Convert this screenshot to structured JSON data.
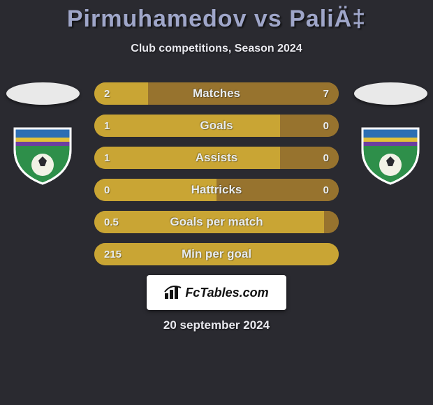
{
  "background_color": "#2a2a30",
  "title": {
    "text": "Pirmuhamedov vs PaliÄ‡",
    "fontsize": 34,
    "color": "#9fa6c9"
  },
  "subtitle": {
    "text": "Club competitions, Season 2024",
    "fontsize": 16,
    "color": "#e8e8ee"
  },
  "date": {
    "text": "20 september 2024",
    "fontsize": 17,
    "color": "#e8e8ee"
  },
  "brand": {
    "text": "FcTables.com"
  },
  "row_base_color": "#97732e",
  "row_fill_color": "#c9a534",
  "row_label_color": "#e8ecef",
  "row_value_color": "#e8ecef",
  "row_label_fontsize": 17,
  "row_value_fontsize": 15,
  "stats": [
    {
      "label": "Matches",
      "left_val": "2",
      "right_val": "7",
      "left_pct": 22,
      "right_pct": 78
    },
    {
      "label": "Goals",
      "left_val": "1",
      "right_val": "0",
      "left_pct": 76,
      "right_pct": 24
    },
    {
      "label": "Assists",
      "left_val": "1",
      "right_val": "0",
      "left_pct": 76,
      "right_pct": 24
    },
    {
      "label": "Hattricks",
      "left_val": "0",
      "right_val": "0",
      "left_pct": 50,
      "right_pct": 50
    },
    {
      "label": "Goals per match",
      "left_val": "0.5",
      "right_val": "",
      "left_pct": 94,
      "right_pct": 6
    },
    {
      "label": "Min per goal",
      "left_val": "215",
      "right_val": "",
      "left_pct": 100,
      "right_pct": 0
    }
  ],
  "shield": {
    "colors": {
      "top": "#2d6fb3",
      "stripe1": "#e3c23a",
      "stripe2": "#6b3fa0",
      "body": "#2e8f4a",
      "ball": "#f2f2e6",
      "outline": "#ffffff"
    }
  }
}
